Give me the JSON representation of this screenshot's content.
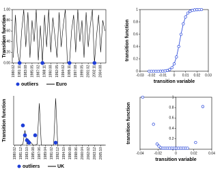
{
  "chart_data": [
    {
      "type": "line",
      "ylabel": "Transition function",
      "categories": [
        "1980:02",
        null,
        null,
        "1981:11",
        null,
        null,
        "1983:08",
        null,
        null,
        "1985:05",
        null,
        null,
        "1987:02",
        null,
        null,
        "1988:11",
        null,
        null,
        "1990:08",
        null,
        null,
        "1992:05",
        null,
        null,
        "1994:02",
        null,
        null,
        "1995:11",
        null,
        null,
        "1997:08",
        null,
        null,
        "1999:05",
        null,
        null,
        "2001:02",
        null,
        null,
        "2002:11",
        null,
        null,
        "2004:08",
        null,
        null
      ],
      "series": [
        {
          "name": "Euro",
          "color": "#000000",
          "values": [
            0.1,
            0.9,
            0.2,
            0.0,
            0.6,
            1,
            0.3,
            0.95,
            0.1,
            0.8,
            0.4,
            1,
            0.05,
            0.7,
            0.0,
            0.9,
            0.3,
            1,
            0.2,
            0.85,
            0.5,
            0.1,
            0.95,
            0.3,
            0.7,
            1,
            0.0,
            0.0,
            0.6,
            0.9,
            0.2,
            1,
            0.4,
            0.8,
            0.1,
            0.95,
            0.3,
            0.7,
            1,
            0.0,
            0.5,
            0.9,
            0.2,
            0.8,
            0.6
          ]
        },
        {
          "name": "outliers",
          "color": "#1f3fd8",
          "values": [
            null,
            null,
            null,
            0,
            null,
            null,
            null,
            null,
            null,
            null,
            null,
            null,
            null,
            null,
            0,
            null,
            null,
            null,
            null,
            null,
            null,
            null,
            null,
            null,
            null,
            null,
            null,
            0,
            null,
            null,
            null,
            null,
            null,
            null,
            null,
            null,
            null,
            null,
            null,
            0,
            null,
            null,
            null,
            null,
            null
          ]
        }
      ],
      "ylim": [
        0,
        1
      ],
      "yticks": [
        {
          "value": 0,
          "label": "0.00"
        },
        {
          "value": 0.2,
          "label": "0.20"
        },
        {
          "value": 0.4,
          "label": "0.40"
        },
        {
          "value": 0.6,
          "label": "0.60"
        },
        {
          "value": 0.8,
          "label": "0.80"
        },
        {
          "value": 1,
          "label": "1.00"
        }
      ]
    },
    {
      "type": "scatter",
      "ylabel": "transition function",
      "xlabel": "transition variable",
      "color": "#1f3fd8",
      "x": [
        -0.022,
        -0.02,
        -0.018,
        -0.016,
        -0.014,
        -0.012,
        -0.01,
        -0.008,
        -0.006,
        -0.004,
        -0.002,
        0,
        0.002,
        0.004,
        0.006,
        0.008,
        0.01,
        0.012,
        0.014,
        0.016,
        0.018,
        0.02,
        0.022,
        0.024
      ],
      "values": [
        0,
        0,
        0,
        0,
        0,
        0.001,
        0.002,
        0.005,
        0.012,
        0.027,
        0.057,
        0.119,
        0.231,
        0.401,
        0.599,
        0.769,
        0.881,
        0.943,
        0.973,
        0.988,
        0.995,
        0.998,
        0.999,
        1
      ],
      "xlim": [
        -0.03,
        0.03
      ],
      "xticks": [
        -0.03,
        -0.02,
        -0.01,
        0,
        0.01,
        0.02,
        0.03
      ],
      "ylim": [
        0,
        1
      ],
      "yticks": [
        0,
        0.2,
        0.4,
        0.6,
        0.8,
        1
      ]
    },
    {
      "type": "line",
      "ylabel": "Transition function",
      "categories": [
        "1980:02",
        null,
        null,
        "1981:12",
        null,
        null,
        "1983:10",
        null,
        null,
        "1985:08",
        null,
        null,
        "1987:06",
        null,
        null,
        "1989:04",
        null,
        null,
        "1991:02",
        null,
        null,
        "1992:12",
        null,
        null,
        "1994:10",
        null,
        null,
        "1996:08",
        null,
        null,
        "1998:06",
        null,
        null,
        "2000:04",
        null,
        null,
        "2002:02",
        null,
        null,
        "2003:12",
        null,
        null,
        "2005:10",
        null,
        null
      ],
      "series": [
        {
          "name": "UK",
          "color": "#000000",
          "values": [
            0,
            0,
            0,
            0,
            0.02,
            0.3,
            0.02,
            0.1,
            0.05,
            0,
            0,
            0.02,
            0.85,
            0,
            0,
            0,
            0,
            0,
            0,
            0,
            0.95,
            0,
            0,
            0,
            0,
            0,
            0,
            0,
            0,
            0,
            0,
            0,
            0,
            0,
            0,
            0,
            0,
            0,
            0,
            0,
            0,
            0,
            0,
            0,
            0
          ]
        },
        {
          "name": "outliers",
          "color": "#1f3fd8",
          "values": [
            null,
            null,
            null,
            null,
            0.4,
            0.2,
            0.1,
            0.05,
            null,
            null,
            0.2,
            null,
            null,
            null,
            null,
            null,
            null,
            null,
            null,
            null,
            0.05,
            null,
            null,
            null,
            null,
            null,
            null,
            null,
            null,
            null,
            null,
            null,
            null,
            null,
            null,
            null,
            null,
            null,
            null,
            null,
            null,
            null,
            null,
            null,
            null
          ]
        }
      ],
      "ylim": [
        0,
        1
      ]
    },
    {
      "type": "scatter",
      "ylabel": "transition function",
      "xlabel": "transition variable",
      "color": "#1f3fd8",
      "centered_axis": true,
      "x": [
        -0.037,
        -0.025,
        -0.021,
        -0.019,
        -0.017,
        -0.015,
        -0.013,
        -0.011,
        -0.009,
        -0.007,
        -0.005,
        -0.003,
        -0.001,
        0.001,
        0.003,
        0.005,
        0.007,
        0.009,
        0.011,
        0.013,
        0.022,
        0.03
      ],
      "values": [
        1,
        0.48,
        0.1,
        0.06,
        0.03,
        0.02,
        0.02,
        0.02,
        0.02,
        0.02,
        0.02,
        0.02,
        0.02,
        0.02,
        0.02,
        0.02,
        0.02,
        0.02,
        0.02,
        0.02,
        0.13,
        0.82
      ],
      "xlim": [
        -0.04,
        0.04
      ],
      "xticks": [
        -0.04,
        -0.02,
        0,
        0.02,
        0.04
      ],
      "ylim": [
        0,
        1
      ],
      "yticks": [
        0,
        0.2,
        0.4,
        0.6,
        0.8,
        1
      ]
    }
  ]
}
